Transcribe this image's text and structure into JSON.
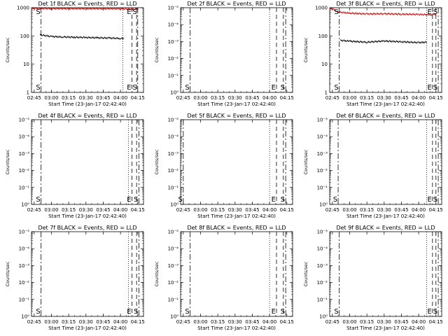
{
  "x_ticks": [
    "02:45",
    "03:00",
    "03:15",
    "03:30",
    "03:45",
    "04:00",
    "04:15"
  ],
  "xlabel": "Start Time (23-Jan-17 02:42:40)",
  "ylabel": "Counts/sec",
  "markers": {
    "start": "S",
    "end": "E"
  },
  "colors": {
    "events": "#000000",
    "lld": "#cc0000"
  },
  "chart_data": [
    {
      "type": "line",
      "title": "Det 1f BLACK = Events, RED = LLD",
      "ylog": true,
      "ytick_labels": [
        "1",
        "10",
        "100",
        "1000"
      ],
      "x_range": [
        "02:42:40",
        "04:20"
      ],
      "ylim": [
        1,
        1000
      ],
      "series": [
        {
          "name": "Events",
          "color": "#000000",
          "x": [
            "02:50",
            "03:00",
            "03:10",
            "03:20",
            "03:30",
            "03:40",
            "03:50",
            "04:00",
            "04:03"
          ],
          "values": [
            110,
            95,
            92,
            90,
            88,
            86,
            84,
            82,
            80
          ]
        },
        {
          "name": "LLD",
          "color": "#cc0000",
          "x": [
            "02:42:40",
            "02:50",
            "03:00",
            "03:15",
            "03:30",
            "03:45",
            "04:00",
            "04:05",
            "04:15"
          ],
          "values": [
            950,
            940,
            935,
            930,
            928,
            925,
            920,
            900,
            890
          ]
        }
      ],
      "vlines": [
        {
          "time": "02:51",
          "style": "dashdot",
          "label": "S"
        },
        {
          "time": "04:02",
          "style": "dotted"
        },
        {
          "time": "04:10",
          "style": "dashed",
          "label": "E"
        },
        {
          "time": "04:14",
          "style": "dashed"
        },
        {
          "time": "04:15",
          "style": "dashdot",
          "label": "S"
        }
      ]
    },
    {
      "type": "line",
      "title": "Det 2f BLACK = Events, RED = LLD",
      "ylog": true,
      "ytick_labels": [
        "10⁰",
        "10⁻¹",
        "10⁻²",
        "10⁻³",
        "10⁻⁴",
        "10⁻⁵"
      ],
      "x_range": [
        "02:42:40",
        "04:20"
      ],
      "series": [],
      "vlines": [
        {
          "time": "02:51",
          "style": "dashdot",
          "label": "S"
        },
        {
          "time": "04:00",
          "style": "dotted"
        },
        {
          "time": "04:06",
          "style": "dashed",
          "label": "E"
        },
        {
          "time": "04:12",
          "style": "dashed"
        },
        {
          "time": "04:14",
          "style": "dashdot",
          "label": "S"
        }
      ]
    },
    {
      "type": "line",
      "title": "Det 3f BLACK = Events, RED = LLD",
      "ylog": true,
      "ytick_labels": [
        "1",
        "10",
        "100",
        "1000"
      ],
      "x_range": [
        "02:42:40",
        "04:20"
      ],
      "ylim": [
        1,
        1000
      ],
      "series": [
        {
          "name": "Events",
          "color": "#000000",
          "x": [
            "02:52",
            "03:00",
            "03:15",
            "03:30",
            "03:45",
            "04:00",
            "04:07"
          ],
          "values": [
            70,
            65,
            60,
            66,
            62,
            58,
            60
          ]
        },
        {
          "name": "LLD",
          "color": "#cc0000",
          "x": [
            "02:42:40",
            "02:45",
            "02:50",
            "03:00",
            "03:15",
            "03:30",
            "03:45",
            "04:00",
            "04:10",
            "04:15"
          ],
          "values": [
            950,
            900,
            700,
            640,
            600,
            610,
            590,
            580,
            560,
            600
          ]
        }
      ],
      "vlines": [
        {
          "time": "02:51",
          "style": "dashdot",
          "label": "S"
        },
        {
          "time": "04:07",
          "style": "dotted"
        },
        {
          "time": "04:12",
          "style": "dashed",
          "label": "E"
        },
        {
          "time": "04:15",
          "style": "dashed"
        },
        {
          "time": "04:17",
          "style": "dashdot",
          "label": "S"
        }
      ]
    },
    {
      "type": "line",
      "title": "Det 4f BLACK = Events, RED = LLD",
      "ylog": true,
      "ytick_labels": [
        "10⁰",
        "10⁻¹",
        "10⁻²",
        "10⁻³",
        "10⁻⁴",
        "10⁻⁵"
      ],
      "x_range": [
        "02:42:40",
        "04:20"
      ],
      "series": [],
      "vlines": [
        {
          "time": "02:51",
          "style": "dashdot",
          "label": "S"
        },
        {
          "time": "04:07",
          "style": "dotted"
        },
        {
          "time": "04:10",
          "style": "dashed",
          "label": "E"
        },
        {
          "time": "04:14",
          "style": "dashed"
        },
        {
          "time": "04:16",
          "style": "dashdot",
          "label": "S"
        }
      ]
    },
    {
      "type": "line",
      "title": "Det 5f BLACK = Events, RED = LLD",
      "ylog": true,
      "ytick_labels": [
        "10⁰",
        "10⁻¹",
        "10⁻²",
        "10⁻³",
        "10⁻⁴",
        "10⁻⁵"
      ],
      "x_range": [
        "02:42:40",
        "04:20"
      ],
      "series": [],
      "vlines": [
        {
          "time": "02:45",
          "style": "dashdot",
          "label": "S"
        },
        {
          "time": "04:00",
          "style": "dotted"
        },
        {
          "time": "04:06",
          "style": "dashed",
          "label": "E"
        },
        {
          "time": "04:12",
          "style": "dashed"
        },
        {
          "time": "04:14",
          "style": "dashdot",
          "label": "S"
        }
      ]
    },
    {
      "type": "line",
      "title": "Det 6f BLACK = Events, RED = LLD",
      "ylog": true,
      "ytick_labels": [
        "10⁰",
        "10⁻¹",
        "10⁻²",
        "10⁻³",
        "10⁻⁴",
        "10⁻⁵"
      ],
      "x_range": [
        "02:42:40",
        "04:20"
      ],
      "series": [],
      "vlines": [
        {
          "time": "02:50",
          "style": "dashdot",
          "label": "S"
        },
        {
          "time": "04:07",
          "style": "dotted"
        },
        {
          "time": "04:12",
          "style": "dashed",
          "label": "E"
        },
        {
          "time": "04:15",
          "style": "dashed"
        },
        {
          "time": "04:17",
          "style": "dashdot",
          "label": "S"
        }
      ]
    },
    {
      "type": "line",
      "title": "Det 7f BLACK = Events, RED = LLD",
      "ylog": true,
      "ytick_labels": [
        "10⁰",
        "10⁻¹",
        "10⁻²",
        "10⁻³",
        "10⁻⁴",
        "10⁻⁵"
      ],
      "x_range": [
        "02:42:40",
        "04:20"
      ],
      "series": [],
      "vlines": [
        {
          "time": "02:51",
          "style": "dashdot",
          "label": "S"
        },
        {
          "time": "04:07",
          "style": "dotted"
        },
        {
          "time": "04:10",
          "style": "dashed",
          "label": "E"
        },
        {
          "time": "04:14",
          "style": "dashed"
        },
        {
          "time": "04:16",
          "style": "dashdot",
          "label": "S"
        }
      ]
    },
    {
      "type": "line",
      "title": "Det 8f BLACK = Events, RED = LLD",
      "ylog": true,
      "ytick_labels": [
        "10⁰",
        "10⁻¹",
        "10⁻²",
        "10⁻³",
        "10⁻⁴",
        "10⁻⁵"
      ],
      "x_range": [
        "02:42:40",
        "04:20"
      ],
      "series": [],
      "vlines": [
        {
          "time": "02:51",
          "style": "dashdot",
          "label": "S"
        },
        {
          "time": "04:00",
          "style": "dotted"
        },
        {
          "time": "04:06",
          "style": "dashed",
          "label": "E"
        },
        {
          "time": "04:12",
          "style": "dashed"
        },
        {
          "time": "04:14",
          "style": "dashdot",
          "label": "S"
        }
      ]
    },
    {
      "type": "line",
      "title": "Det 9f BLACK = Events, RED = LLD",
      "ylog": true,
      "ytick_labels": [
        "10⁰",
        "10⁻¹",
        "10⁻²",
        "10⁻³",
        "10⁻⁴",
        "10⁻⁵"
      ],
      "x_range": [
        "02:42:40",
        "04:20"
      ],
      "series": [],
      "vlines": [
        {
          "time": "02:51",
          "style": "dashdot",
          "label": "S"
        },
        {
          "time": "04:07",
          "style": "dotted"
        },
        {
          "time": "04:12",
          "style": "dashed",
          "label": "E"
        },
        {
          "time": "04:15",
          "style": "dashed"
        },
        {
          "time": "04:17",
          "style": "dashdot",
          "label": "S"
        }
      ]
    }
  ]
}
